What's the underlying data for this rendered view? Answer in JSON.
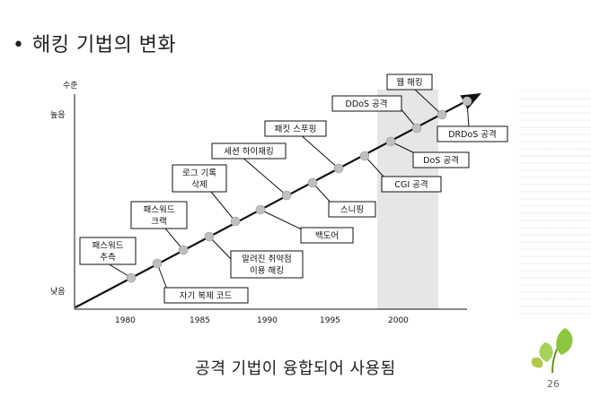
{
  "slide": {
    "bullet": "•",
    "title": "해킹 기법의 변화",
    "caption": "공격 기법이 융합되어 사용됨",
    "page_number": "26"
  },
  "diagram": {
    "y_axis_title": "수준",
    "y_high": "높음",
    "y_low": "낮음",
    "x_ticks": [
      "1980",
      "1985",
      "1990",
      "1995",
      "2000"
    ],
    "above_labels": [
      [
        "패스워드",
        "추측"
      ],
      [
        "패스워드",
        "크랙"
      ],
      [
        "로그 기록",
        "삭제"
      ],
      [
        "세션 하이재킹"
      ],
      [
        "패킷 스푸핑"
      ],
      [
        "DDoS 공격"
      ],
      [
        "웹 해킹"
      ]
    ],
    "below_labels": [
      [
        "자기 복제 코드"
      ],
      [
        "알려진 취약점",
        "이용 해킹"
      ],
      [
        "백도어"
      ],
      [
        "스니핑"
      ],
      [
        "CGI 공격"
      ],
      [
        "DoS 공격"
      ],
      [
        "DRDoS 공격"
      ]
    ]
  },
  "colors": {
    "highlight_band": "#e6e6e6",
    "dot": "#bfbfbf",
    "leaf": "#8cc63f"
  }
}
